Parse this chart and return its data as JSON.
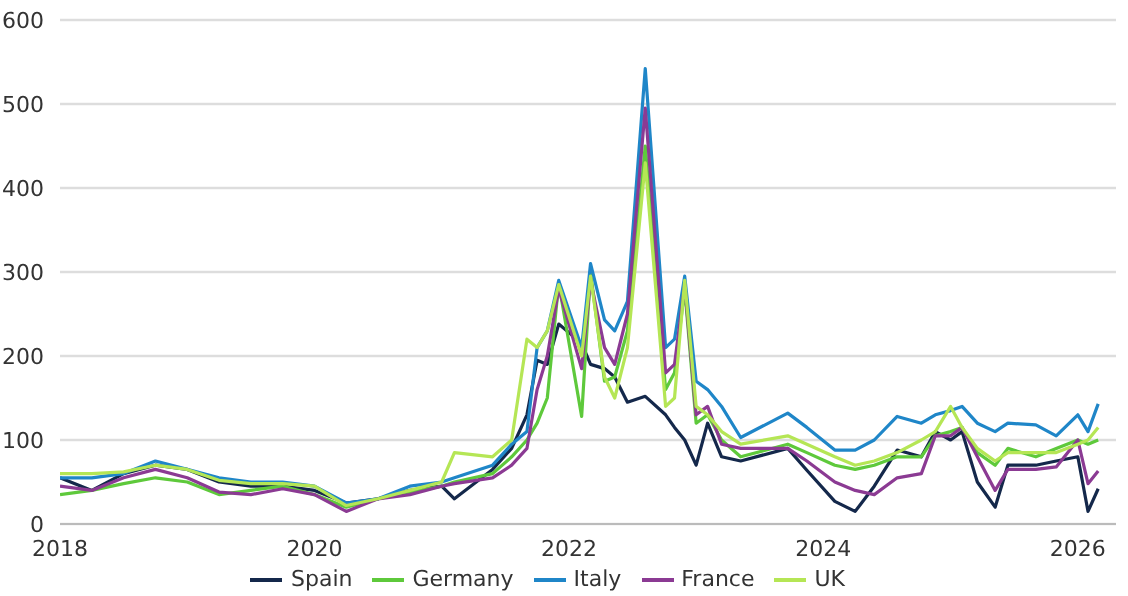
{
  "chart_data": {
    "type": "line",
    "x": [
      2018,
      2018.25,
      2018.5,
      2018.75,
      2019,
      2019.25,
      2019.5,
      2019.75,
      2020,
      2020.25,
      2020.5,
      2020.75,
      2021,
      2021.1,
      2021.4,
      2021.55,
      2021.67,
      2021.75,
      2021.83,
      2021.92,
      2022.1,
      2022.17,
      2022.28,
      2022.36,
      2022.46,
      2022.6,
      2022.76,
      2022.83,
      2022.91,
      2023,
      2023.09,
      2023.2,
      2023.35,
      2023.72,
      2023.87,
      2024.09,
      2024.25,
      2024.4,
      2024.58,
      2024.77,
      2024.88,
      2025,
      2025.09,
      2025.21,
      2025.35,
      2025.45,
      2025.67,
      2025.83,
      2026,
      2026.08,
      2026.16
    ],
    "series": [
      {
        "name": "Spain",
        "color": "#14284b",
        "values": [
          55,
          40,
          60,
          70,
          65,
          50,
          45,
          45,
          40,
          25,
          30,
          40,
          45,
          30,
          65,
          90,
          130,
          195,
          190,
          238,
          215,
          190,
          185,
          175,
          145,
          152,
          130,
          115,
          100,
          70,
          120,
          80,
          75,
          90,
          64,
          27,
          15,
          45,
          88,
          80,
          110,
          100,
          110,
          50,
          20,
          70,
          70,
          75,
          80,
          15,
          42
        ]
      },
      {
        "name": "Germany",
        "color": "#5ec93b",
        "values": [
          35,
          40,
          48,
          55,
          50,
          35,
          40,
          45,
          35,
          20,
          30,
          38,
          45,
          50,
          60,
          80,
          100,
          120,
          150,
          287,
          128,
          300,
          170,
          175,
          230,
          450,
          160,
          180,
          280,
          120,
          130,
          100,
          80,
          95,
          85,
          70,
          65,
          70,
          80,
          80,
          105,
          110,
          115,
          85,
          70,
          90,
          80,
          90,
          100,
          95,
          100
        ]
      },
      {
        "name": "Italy",
        "color": "#1f86c8",
        "values": [
          55,
          55,
          60,
          75,
          65,
          55,
          50,
          50,
          45,
          25,
          30,
          45,
          50,
          55,
          70,
          95,
          110,
          210,
          230,
          290,
          210,
          310,
          243,
          230,
          265,
          542,
          210,
          220,
          295,
          170,
          160,
          140,
          103,
          132,
          115,
          88,
          88,
          100,
          128,
          120,
          130,
          135,
          140,
          120,
          110,
          120,
          118,
          105,
          130,
          110,
          143
        ]
      },
      {
        "name": "France",
        "color": "#8b3a93",
        "values": [
          45,
          40,
          55,
          65,
          55,
          38,
          35,
          42,
          35,
          15,
          30,
          35,
          45,
          48,
          55,
          70,
          90,
          160,
          200,
          280,
          185,
          290,
          210,
          190,
          250,
          495,
          180,
          190,
          285,
          130,
          140,
          95,
          90,
          90,
          75,
          50,
          40,
          35,
          55,
          60,
          105,
          105,
          115,
          80,
          40,
          65,
          65,
          68,
          100,
          48,
          63
        ]
      },
      {
        "name": "UK",
        "color": "#b5e655",
        "values": [
          60,
          60,
          62,
          70,
          65,
          52,
          48,
          48,
          45,
          22,
          30,
          40,
          50,
          85,
          80,
          100,
          220,
          210,
          230,
          285,
          200,
          295,
          175,
          150,
          210,
          430,
          140,
          150,
          290,
          140,
          130,
          110,
          95,
          105,
          95,
          80,
          70,
          75,
          85,
          100,
          110,
          140,
          115,
          90,
          75,
          85,
          85,
          85,
          95,
          100,
          115
        ]
      }
    ],
    "xlim": [
      2018,
      2026.3
    ],
    "xticks": [
      2018,
      2020,
      2022,
      2024,
      2026
    ],
    "ylim": [
      0,
      600
    ],
    "yticks": [
      0,
      100,
      200,
      300,
      400,
      500,
      600
    ],
    "grid": "y",
    "legend": "bottom",
    "marker": "none",
    "line_style": "solid"
  }
}
